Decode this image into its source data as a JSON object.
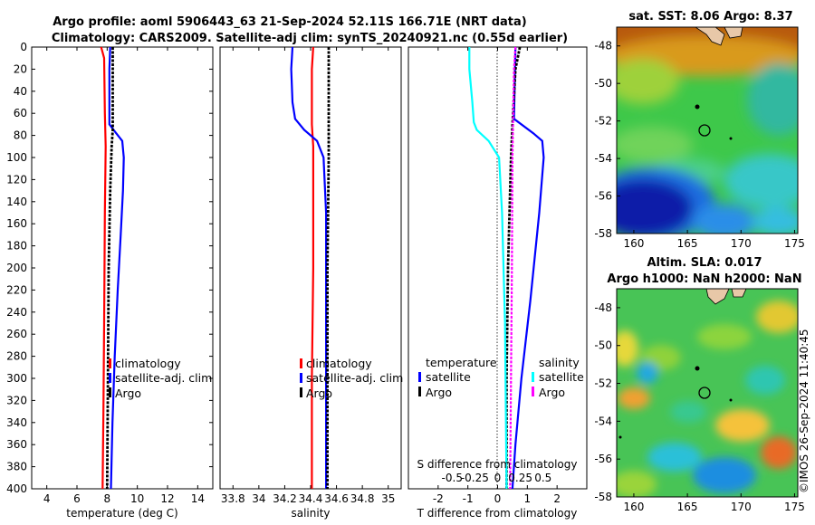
{
  "header": {
    "title_line1": "Argo profile: aoml 5906443_63 21-Sep-2024 52.11S 166.71E (NRT data)",
    "title_line2": "Climatology: CARS2009. Satellite-adj clim: synTS_20240921.nc (0.55d earlier)"
  },
  "depth_ticks": [
    "0",
    "20",
    "40",
    "60",
    "80",
    "100",
    "120",
    "140",
    "160",
    "180",
    "200",
    "220",
    "240",
    "260",
    "280",
    "300",
    "320",
    "340",
    "360",
    "380",
    "400"
  ],
  "colors": {
    "climatology": "#ff0000",
    "satellite": "#0000ff",
    "argo": "#000000",
    "diff_temp_sat": "#00ffff",
    "diff_sal_sat": "#ff00ff"
  },
  "chart_data": [
    {
      "type": "line",
      "id": "temperature",
      "xlabel": "temperature (deg C)",
      "ylabel": "",
      "xlim": [
        3,
        15
      ],
      "ylim": [
        0,
        400
      ],
      "y_inverted": true,
      "xticks": [
        4,
        6,
        8,
        10,
        12,
        14
      ],
      "xtick_labels": [
        "4",
        "6",
        "8",
        "10",
        "12",
        "14"
      ],
      "legend": [
        "climatology",
        "satellite-adj. clim",
        "Argo"
      ],
      "series": [
        {
          "name": "climatology",
          "color": "#ff0000",
          "points": [
            [
              7.6,
              0
            ],
            [
              7.8,
              10
            ],
            [
              7.85,
              60
            ],
            [
              7.9,
              90
            ],
            [
              7.85,
              150
            ],
            [
              7.8,
              250
            ],
            [
              7.75,
              330
            ],
            [
              7.7,
              400
            ]
          ]
        },
        {
          "name": "satellite-adj. clim",
          "color": "#0000ff",
          "points": [
            [
              8.2,
              0
            ],
            [
              8.15,
              20
            ],
            [
              8.15,
              70
            ],
            [
              8.6,
              78
            ],
            [
              9.0,
              85
            ],
            [
              9.1,
              100
            ],
            [
              9.05,
              130
            ],
            [
              8.9,
              170
            ],
            [
              8.7,
              220
            ],
            [
              8.5,
              280
            ],
            [
              8.35,
              340
            ],
            [
              8.25,
              400
            ]
          ]
        },
        {
          "name": "Argo",
          "color": "#000000",
          "points": [
            [
              8.37,
              0
            ],
            [
              8.37,
              75
            ],
            [
              8.3,
              90
            ],
            [
              8.2,
              130
            ],
            [
              8.1,
              200
            ],
            [
              8.05,
              300
            ],
            [
              8.0,
              400
            ]
          ]
        }
      ]
    },
    {
      "type": "line",
      "id": "salinity",
      "xlabel": "salinity",
      "ylabel": "",
      "xlim": [
        33.7,
        35.1
      ],
      "ylim": [
        0,
        400
      ],
      "y_inverted": true,
      "xticks": [
        33.8,
        34.0,
        34.2,
        34.4,
        34.6,
        34.8,
        35.0
      ],
      "xtick_labels": [
        "33.8",
        "34",
        "34.2",
        "34.4",
        "34.6",
        "34.8",
        "35"
      ],
      "legend": [
        "climatology",
        "satellite-adj. clim",
        "Argo"
      ],
      "series": [
        {
          "name": "climatology",
          "color": "#ff0000",
          "points": [
            [
              34.42,
              0
            ],
            [
              34.41,
              20
            ],
            [
              34.41,
              70
            ],
            [
              34.42,
              90
            ],
            [
              34.42,
              200
            ],
            [
              34.41,
              300
            ],
            [
              34.41,
              400
            ]
          ]
        },
        {
          "name": "satellite-adj. clim",
          "color": "#0000ff",
          "points": [
            [
              34.26,
              0
            ],
            [
              34.25,
              20
            ],
            [
              34.26,
              50
            ],
            [
              34.28,
              65
            ],
            [
              34.35,
              75
            ],
            [
              34.45,
              85
            ],
            [
              34.5,
              100
            ],
            [
              34.52,
              150
            ],
            [
              34.52,
              250
            ],
            [
              34.52,
              400
            ]
          ]
        },
        {
          "name": "Argo",
          "color": "#000000",
          "points": [
            [
              34.54,
              0
            ],
            [
              34.54,
              100
            ],
            [
              34.53,
              200
            ],
            [
              34.53,
              300
            ],
            [
              34.53,
              400
            ]
          ]
        }
      ]
    },
    {
      "type": "line",
      "id": "difference",
      "xlabel": "T difference from climatology",
      "xlabel_top": "S difference from climatology",
      "xlim": [
        -3,
        3
      ],
      "ylim": [
        0,
        400
      ],
      "y_inverted": true,
      "xticks": [
        -2,
        -1,
        0,
        1,
        2
      ],
      "xtick_labels": [
        "-2",
        "-1",
        "0",
        "1",
        "2"
      ],
      "xticks_top": [
        -0.5,
        -0.25,
        0,
        0.25,
        0.5
      ],
      "xtick_labels_top": [
        "-0.5",
        "-0.25",
        "0",
        "0.25",
        "0.5"
      ],
      "legend_temperature_header": "temperature",
      "legend_salinity_header": "salinity",
      "legend_temperature": [
        "satellite",
        "Argo"
      ],
      "legend_salinity": [
        "satellite",
        "Argo"
      ],
      "series": [
        {
          "name": "T satellite",
          "color": "#0000ff",
          "points": [
            [
              0.6,
              0
            ],
            [
              0.55,
              65
            ],
            [
              1.2,
              78
            ],
            [
              1.5,
              85
            ],
            [
              1.55,
              100
            ],
            [
              1.4,
              150
            ],
            [
              1.1,
              230
            ],
            [
              0.8,
              300
            ],
            [
              0.6,
              360
            ],
            [
              0.5,
              400
            ]
          ]
        },
        {
          "name": "T Argo",
          "color": "#000000",
          "points": [
            [
              0.75,
              0
            ],
            [
              0.6,
              20
            ],
            [
              0.5,
              70
            ],
            [
              0.45,
              100
            ],
            [
              0.35,
              200
            ],
            [
              0.3,
              300
            ],
            [
              0.3,
              400
            ]
          ]
        },
        {
          "name": "S satellite",
          "color": "#00ffff",
          "points": [
            [
              -0.95,
              0
            ],
            [
              -0.95,
              20
            ],
            [
              -0.85,
              50
            ],
            [
              -0.8,
              68
            ],
            [
              -0.7,
              75
            ],
            [
              -0.3,
              85
            ],
            [
              0.05,
              100
            ],
            [
              0.15,
              150
            ],
            [
              0.25,
              250
            ],
            [
              0.3,
              400
            ]
          ]
        },
        {
          "name": "S Argo",
          "color": "#ff00ff",
          "points": [
            [
              0.6,
              0
            ],
            [
              0.55,
              20
            ],
            [
              0.5,
              100
            ],
            [
              0.48,
              200
            ],
            [
              0.45,
              300
            ],
            [
              0.42,
              400
            ]
          ]
        }
      ]
    }
  ],
  "maps": {
    "sst": {
      "title": "sat. SST: 8.06 Argo: 8.37",
      "yticks": [
        "-48",
        "-50",
        "-52",
        "-54",
        "-56",
        "-58"
      ],
      "xticks": [
        "160",
        "165",
        "170",
        "175"
      ]
    },
    "sla": {
      "title_line1": "Altim. SLA: 0.017",
      "title_line2": "Argo h1000: NaN h2000: NaN",
      "yticks": [
        "-48",
        "-50",
        "-52",
        "-54",
        "-56",
        "-58"
      ],
      "xticks": [
        "160",
        "165",
        "170",
        "175"
      ]
    }
  },
  "watermark": "©IMOS 26-Sep-2024 11:40:45"
}
